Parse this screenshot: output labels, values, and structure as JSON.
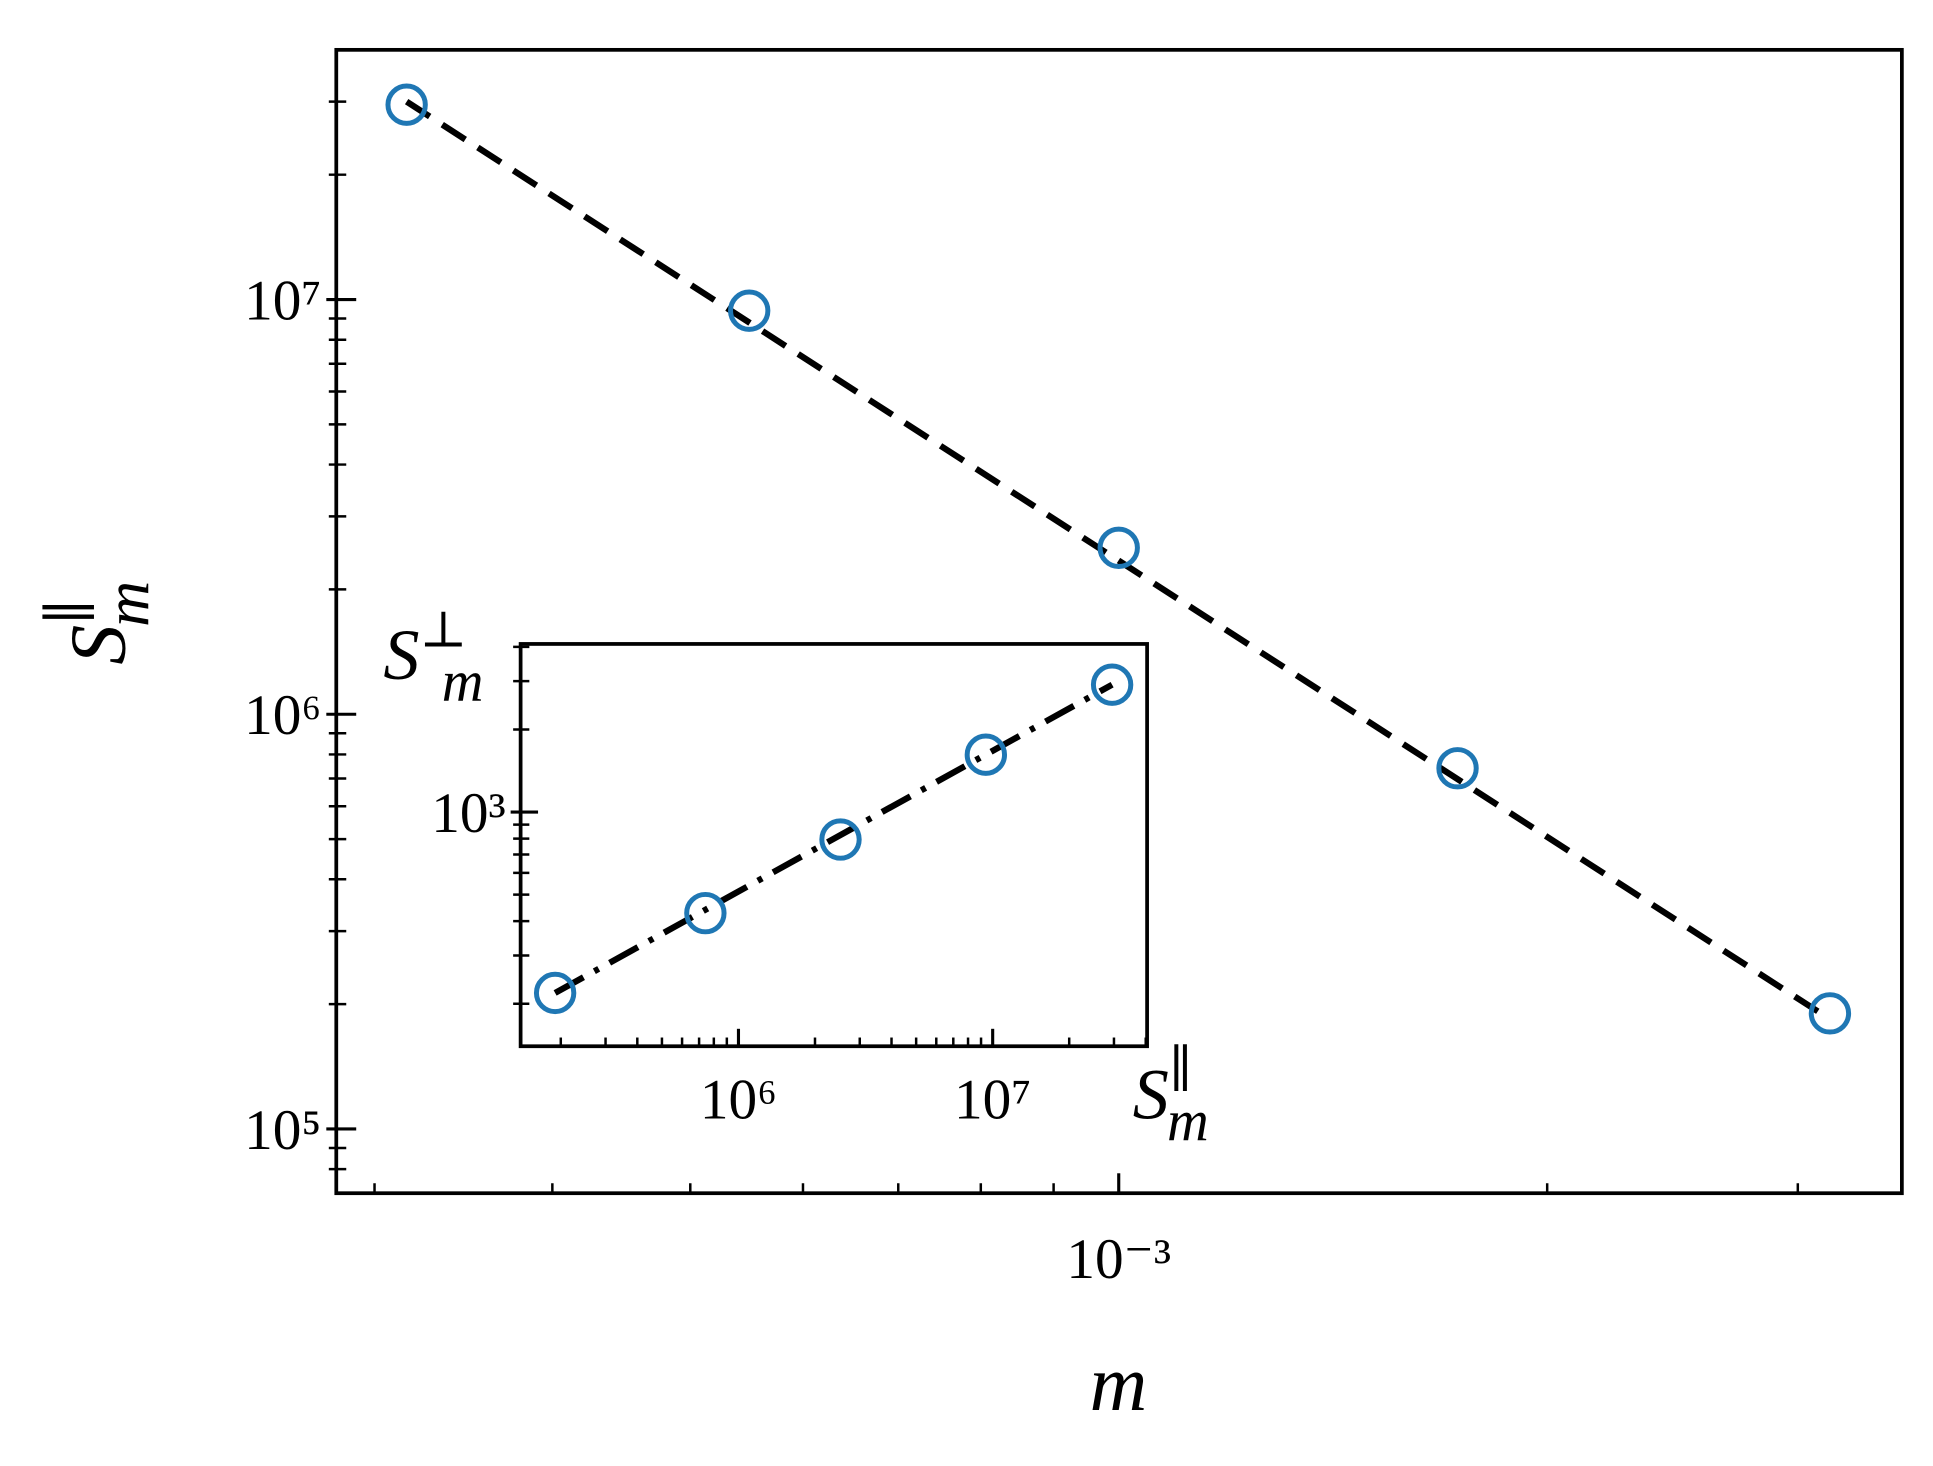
{
  "chart_data": [
    {
      "type": "scatter",
      "xscale": "log",
      "yscale": "log",
      "xlabel": {
        "base": "m"
      },
      "ylabel": {
        "base": "S",
        "sub": "m",
        "sup": "∥"
      },
      "x": [
        0.000316,
        0.00055,
        0.001,
        0.00173,
        0.00316
      ],
      "series": [
        {
          "color": "#1f77b4",
          "values": [
            29500000,
            9400000,
            2520000,
            741000,
            190000
          ]
        }
      ],
      "fit": {
        "style": "dashed",
        "color": "#000000",
        "x": [
          0.000316,
          0.00316
        ],
        "y": [
          30000000,
          184000
        ]
      },
      "xlim": [
        0.000282,
        0.00355
      ],
      "ylim": [
        70000,
        40000000
      ],
      "xticks": [
        {
          "value": 0.001,
          "label": "10⁻³"
        }
      ],
      "yticks": [
        {
          "value": 100000,
          "label": "10⁵"
        },
        {
          "value": 1000000,
          "label": "10⁶"
        },
        {
          "value": 10000000,
          "label": "10⁷"
        }
      ],
      "xminorticks": [
        0.0003,
        0.0004,
        0.0005,
        0.0006,
        0.0007,
        0.0008,
        0.0009,
        0.002,
        0.003
      ],
      "yminorticks": [
        80000,
        90000,
        200000,
        300000,
        400000,
        500000,
        600000,
        700000,
        800000,
        900000,
        2000000,
        3000000,
        4000000,
        5000000,
        6000000,
        7000000,
        8000000,
        9000000,
        20000000,
        30000000
      ]
    },
    {
      "type": "scatter",
      "xscale": "log",
      "yscale": "log",
      "xlabel": {
        "base": "S",
        "sub": "m",
        "sup": "∥"
      },
      "ylabel": {
        "base": "S",
        "sub": "m",
        "sup": "⊥"
      },
      "x": [
        190000,
        741000,
        2520000,
        9400000,
        29500000
      ],
      "series": [
        {
          "color": "#1f77b4",
          "values": [
            219,
            428,
            794,
            1618,
            2912
          ]
        }
      ],
      "fit": {
        "style": "dashdot",
        "color": "#000000",
        "x": [
          190000,
          29500000
        ],
        "y": [
          219,
          2912
        ]
      },
      "xlim": [
        139000,
        40500000
      ],
      "ylim": [
        140,
        4100
      ],
      "xticks": [
        {
          "value": 1000000,
          "label": "10⁶"
        },
        {
          "value": 10000000,
          "label": "10⁷"
        }
      ],
      "yticks": [
        {
          "value": 1000,
          "label": "10³"
        }
      ],
      "xminorticks": [
        200000,
        300000,
        400000,
        500000,
        600000,
        700000,
        800000,
        900000,
        2000000,
        3000000,
        4000000,
        5000000,
        6000000,
        7000000,
        8000000,
        9000000,
        20000000,
        30000000,
        40000000
      ],
      "yminorticks": [
        200,
        300,
        400,
        500,
        600,
        700,
        800,
        900,
        2000,
        3000,
        4000
      ]
    }
  ]
}
